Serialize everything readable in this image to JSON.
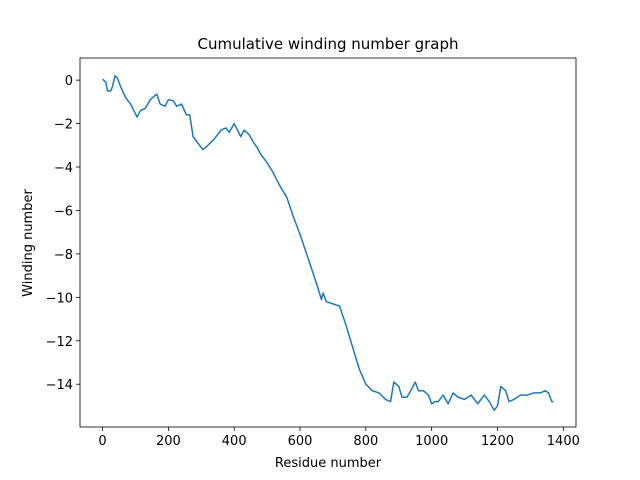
{
  "chart_data": {
    "type": "line",
    "title": "Cumulative winding number graph",
    "x_label": "Residue number",
    "y_label": "Winding number",
    "x": [
      0,
      10,
      15,
      25,
      30,
      38,
      45,
      55,
      70,
      85,
      95,
      105,
      115,
      130,
      145,
      160,
      165,
      175,
      190,
      200,
      215,
      225,
      240,
      255,
      265,
      275,
      290,
      305,
      320,
      340,
      360,
      375,
      385,
      400,
      410,
      420,
      430,
      445,
      460,
      470,
      480,
      500,
      520,
      540,
      560,
      580,
      600,
      620,
      640,
      655,
      665,
      670,
      680,
      700,
      720,
      740,
      760,
      780,
      800,
      820,
      840,
      860,
      875,
      885,
      900,
      910,
      925,
      940,
      950,
      960,
      975,
      990,
      1000,
      1010,
      1020,
      1035,
      1050,
      1065,
      1080,
      1100,
      1120,
      1140,
      1160,
      1175,
      1190,
      1200,
      1210,
      1225,
      1235,
      1250,
      1270,
      1290,
      1310,
      1330,
      1345,
      1355,
      1365,
      1370
    ],
    "series": [
      {
        "color": "#1f77b4",
        "values": [
          0.05,
          -0.1,
          -0.5,
          -0.5,
          -0.3,
          0.2,
          0.1,
          -0.3,
          -0.8,
          -1.1,
          -1.4,
          -1.7,
          -1.4,
          -1.3,
          -0.9,
          -0.7,
          -0.65,
          -1.1,
          -1.2,
          -0.9,
          -0.95,
          -1.2,
          -1.1,
          -1.6,
          -1.6,
          -2.6,
          -2.9,
          -3.2,
          -3.0,
          -2.7,
          -2.3,
          -2.2,
          -2.4,
          -2.0,
          -2.3,
          -2.6,
          -2.3,
          -2.5,
          -2.9,
          -3.1,
          -3.4,
          -3.8,
          -4.3,
          -4.9,
          -5.4,
          -6.3,
          -7.1,
          -8.0,
          -8.9,
          -9.6,
          -10.1,
          -9.8,
          -10.2,
          -10.3,
          -10.4,
          -11.3,
          -12.3,
          -13.3,
          -14.0,
          -14.3,
          -14.4,
          -14.7,
          -14.8,
          -13.9,
          -14.1,
          -14.6,
          -14.6,
          -14.2,
          -13.9,
          -14.3,
          -14.3,
          -14.5,
          -14.9,
          -14.8,
          -14.8,
          -14.5,
          -14.9,
          -14.4,
          -14.6,
          -14.7,
          -14.5,
          -14.9,
          -14.5,
          -14.8,
          -15.2,
          -15.0,
          -14.1,
          -14.3,
          -14.8,
          -14.7,
          -14.5,
          -14.5,
          -14.4,
          -14.4,
          -14.3,
          -14.4,
          -14.8,
          -14.8
        ]
      }
    ],
    "xlim": [
      -68.5,
      1438.5
    ],
    "xticks": [
      0,
      200,
      400,
      600,
      800,
      1000,
      1200,
      1400
    ],
    "ylim": [
      -15.97,
      1.02
    ],
    "yticks": [
      0,
      {
        "value": -2,
        "label": "−2"
      },
      {
        "value": -4,
        "label": "−4"
      },
      {
        "value": -6,
        "label": "−6"
      },
      {
        "value": -8,
        "label": "−8"
      },
      {
        "value": -10,
        "label": "−10"
      },
      {
        "value": -12,
        "label": "−12"
      },
      {
        "value": -14,
        "label": "−14"
      }
    ],
    "grid": false
  }
}
